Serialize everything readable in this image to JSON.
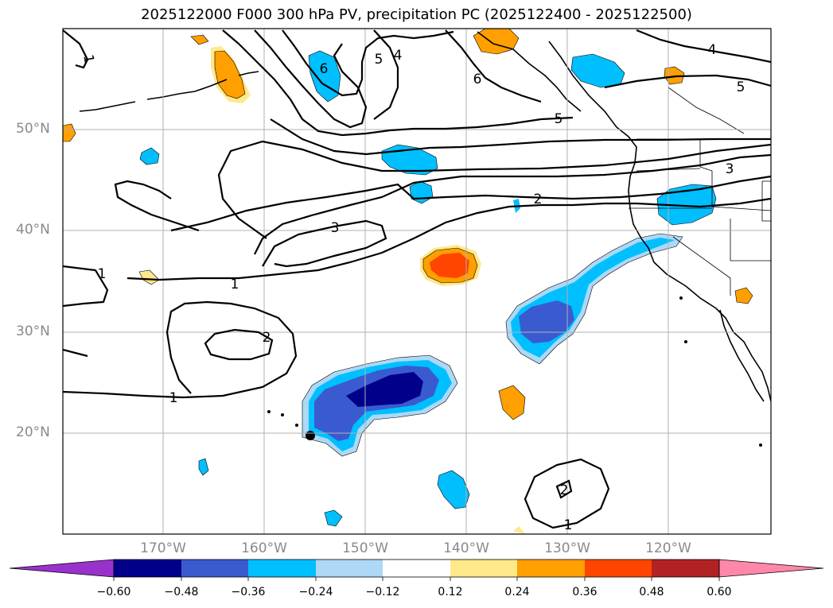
{
  "title": "2025122000 F000 300 hPa PV, precipitation PC (2025122400 - 2025122500)",
  "lat_ticks": [
    "50°N",
    "40°N",
    "30°N",
    "20°N"
  ],
  "lon_ticks": [
    "170°W",
    "160°W",
    "150°W",
    "140°W",
    "130°W",
    "120°W"
  ],
  "pv_contour_labels": [
    "1",
    "1",
    "1",
    "1",
    "1",
    "2",
    "2",
    "2",
    "3",
    "3",
    "4",
    "4",
    "5",
    "5",
    "5",
    "6",
    "6"
  ],
  "colorbar": {
    "ticks": [
      "−0.60",
      "−0.48",
      "−0.36",
      "−0.24",
      "−0.12",
      "0.12",
      "0.24",
      "0.36",
      "0.48",
      "0.60"
    ],
    "colors": [
      "#9932cc",
      "#00008b",
      "#3a5bd0",
      "#00bfff",
      "#add8f6",
      "#ffffff",
      "#ffe98a",
      "#ff9f00",
      "#ff4500",
      "#b22222",
      "#ff88aa"
    ]
  },
  "chart_data": {
    "type": "map",
    "projection": "equirectangular",
    "lon_range": [
      -180,
      -110
    ],
    "lat_range": [
      10,
      60
    ],
    "variables": [
      "300 hPa potential vorticity (PVU, contours)",
      "precipitation PC (shaded)"
    ],
    "valid_window": [
      "2025122400",
      "2025122500"
    ],
    "shading_levels": [
      -0.6,
      -0.48,
      -0.36,
      -0.24,
      -0.12,
      0.12,
      0.24,
      0.36,
      0.48,
      0.6
    ]
  }
}
